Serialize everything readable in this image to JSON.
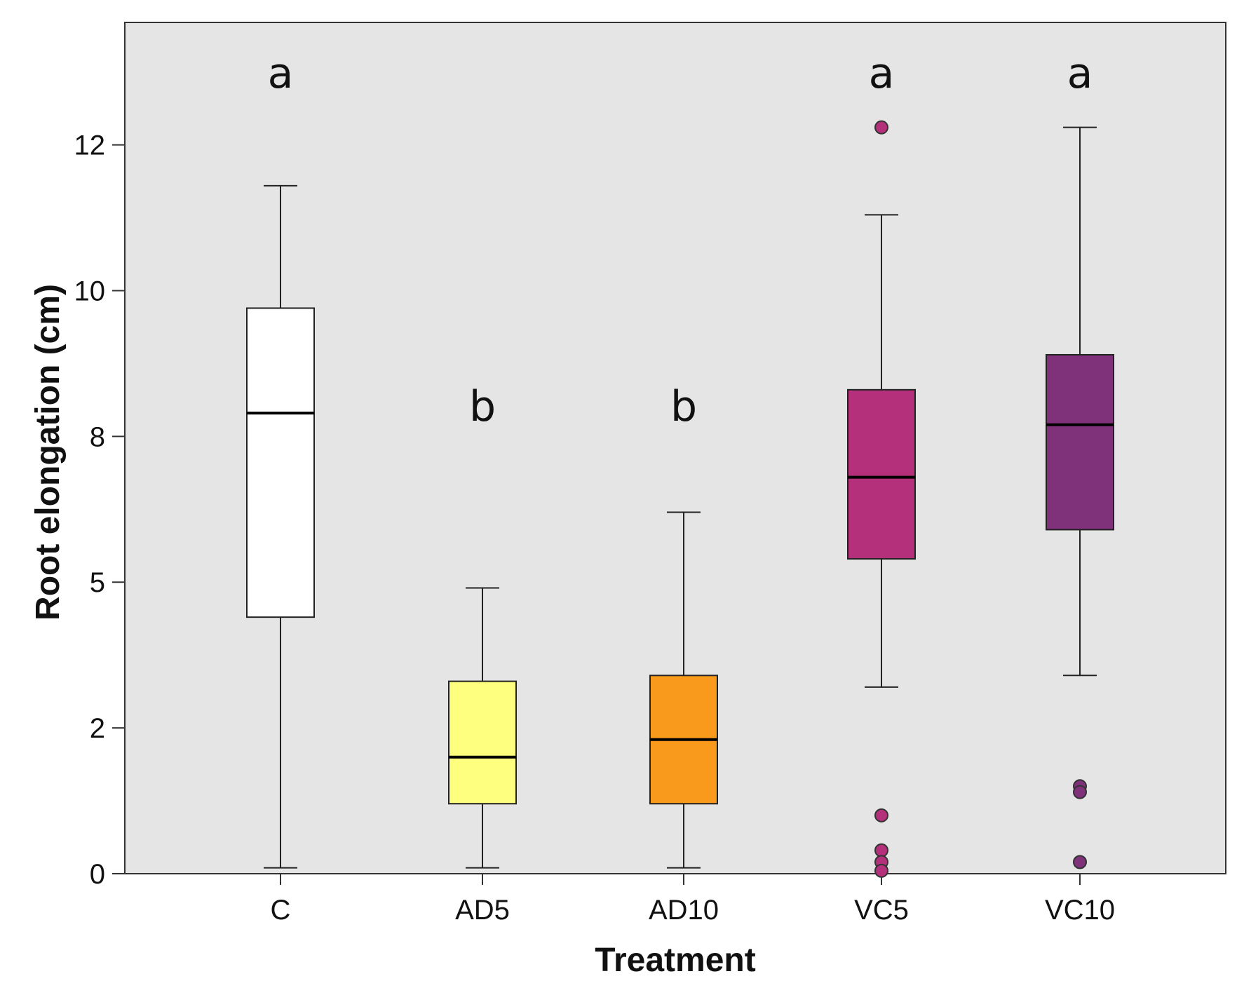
{
  "chart_data": {
    "type": "boxplot",
    "title": "",
    "xlabel": "Treatment",
    "ylabel": "Root elongation (cm)",
    "ylim": [
      0,
      14.6
    ],
    "y_ticks": [
      0,
      2,
      5,
      8,
      10,
      12
    ],
    "y_tick_values": [
      0,
      2.5,
      5.0,
      7.5,
      10.0,
      12.5
    ],
    "grid": false,
    "background_color": "#e5e5e5",
    "categories": [
      "C",
      "AD5",
      "AD10",
      "VC5",
      "VC10"
    ],
    "boxes": [
      {
        "category": "C",
        "whisker_low": 0.1,
        "q1": 4.4,
        "median": 7.9,
        "q3": 9.7,
        "whisker_high": 11.8,
        "outliers": [],
        "color": "#ffffff",
        "letter": "a"
      },
      {
        "category": "AD5",
        "whisker_low": 0.1,
        "q1": 1.2,
        "median": 2.0,
        "q3": 3.3,
        "whisker_high": 4.9,
        "outliers": [],
        "color": "#ffff7f",
        "letter": "b"
      },
      {
        "category": "AD10",
        "whisker_low": 0.1,
        "q1": 1.2,
        "median": 2.3,
        "q3": 3.4,
        "whisker_high": 6.2,
        "outliers": [],
        "color": "#f99a1c",
        "letter": "b"
      },
      {
        "category": "VC5",
        "whisker_low": 3.2,
        "q1": 5.4,
        "median": 6.8,
        "q3": 8.3,
        "whisker_high": 11.3,
        "outliers": [
          12.8,
          1.0,
          0.4,
          0.2,
          0.05
        ],
        "color": "#b4307a",
        "letter": "a"
      },
      {
        "category": "VC10",
        "whisker_low": 3.4,
        "q1": 5.9,
        "median": 7.7,
        "q3": 8.9,
        "whisker_high": 12.8,
        "outliers": [
          1.5,
          1.4,
          0.2
        ],
        "color": "#7f327a",
        "letter": "a"
      }
    ]
  }
}
